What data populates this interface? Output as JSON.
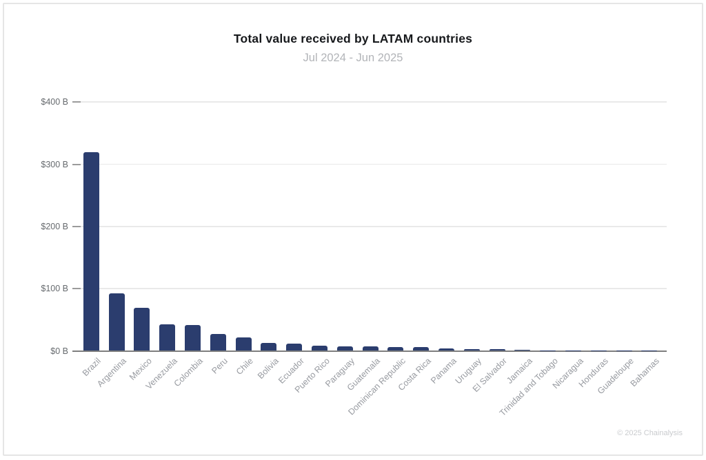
{
  "page": {
    "background": "#ffffff",
    "border_color": "#e5e5e5"
  },
  "footer": {
    "credit": "© 2025 Chainalysis"
  },
  "chart_data": {
    "type": "bar",
    "title": "Total value received by LATAM countries",
    "subtitle": "Jul 2024 - Jun 2025",
    "unit": "USD billions",
    "bar_color": "#2b3d6e",
    "gridline_color": "#e9e9e9",
    "axis_color": "#7e7e7e",
    "grid": true,
    "legend": false,
    "ylim": [
      0,
      400
    ],
    "yticks": [
      {
        "value": 0,
        "label": "$0 B"
      },
      {
        "value": 100,
        "label": "$100 B"
      },
      {
        "value": 200,
        "label": "$200 B"
      },
      {
        "value": 300,
        "label": "$300 B"
      },
      {
        "value": 400,
        "label": "$400 B"
      }
    ],
    "categories": [
      "Brazil",
      "Argentina",
      "Mexico",
      "Venezuela",
      "Colombia",
      "Peru",
      "Chile",
      "Bolivia",
      "Ecuador",
      "Puerto Rico",
      "Paraguay",
      "Guatemala",
      "Dominican Republic",
      "Costa Rica",
      "Panama",
      "Uruguay",
      "El Salvador",
      "Jamaica",
      "Trinidad and Tobago",
      "Nicaragua",
      "Honduras",
      "Guadeloupe",
      "Bahamas"
    ],
    "values": [
      319,
      92,
      69,
      43,
      42,
      27,
      22,
      13,
      12,
      8,
      7,
      7,
      6,
      6,
      4,
      3,
      3,
      2,
      0.8,
      0.6,
      0.5,
      0.2,
      0.1
    ]
  }
}
